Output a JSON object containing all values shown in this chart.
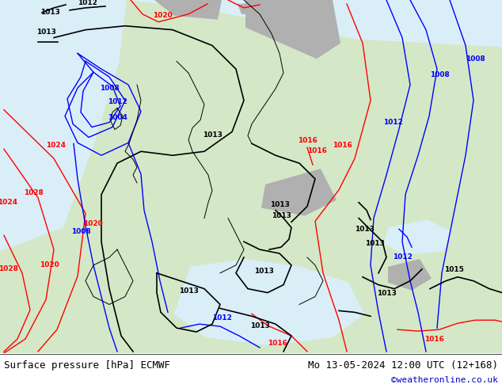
{
  "title_left": "Surface pressure [hPa] ECMWF",
  "title_right": "Mo 13-05-2024 12:00 UTC (12+168)",
  "copyright": "©weatheronline.co.uk",
  "fig_width": 6.34,
  "fig_height": 4.9,
  "dpi": 100,
  "bottom_text_color": "#000000",
  "copyright_color": "#0000cc",
  "title_fontsize": 9,
  "copyright_fontsize": 8
}
